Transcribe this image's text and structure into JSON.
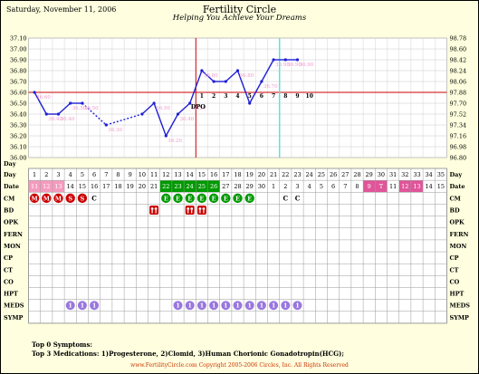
{
  "header": {
    "date": "Saturday, November 11, 2006",
    "title": "Fertility Circle",
    "subtitle": "Helping You Achieve Your Dreams"
  },
  "colors": {
    "line": "#1f1fd6",
    "cover_line": "#cc0000",
    "ovulation_line": "#cc0000",
    "today_line": "#66dddd",
    "menses_row": "#f49bbd",
    "period_date": "#e05599",
    "cm_green": "#009900",
    "menses_red": "#cc0000",
    "meds_purple": "#9977dd",
    "label_pink": "#ee99cc",
    "grid": "#a0a0a0"
  },
  "chart_data": {
    "type": "line",
    "title": "Fertility Circle",
    "subtitle": "Helping You Achieve Your Dreams",
    "y_left_ticks": [
      "36.00",
      "36.10",
      "36.20",
      "36.30",
      "36.40",
      "36.50",
      "36.60",
      "36.70",
      "36.80",
      "36.90",
      "37.00",
      "37.10"
    ],
    "y_right_ticks": [
      "96.80",
      "96.98",
      "97.16",
      "97.34",
      "97.52",
      "97.70",
      "97.88",
      "98.06",
      "98.24",
      "98.42",
      "98.60",
      "98.78"
    ],
    "ylim": [
      36.0,
      37.1
    ],
    "cycle_days": [
      1,
      2,
      3,
      4,
      5,
      6,
      7,
      8,
      9,
      10,
      11,
      12,
      13,
      14,
      15,
      16,
      17,
      18,
      19,
      20,
      21,
      22,
      23,
      24,
      25,
      26,
      27,
      28,
      29,
      30,
      31,
      32,
      33,
      34,
      35
    ],
    "weekdays": [
      "Sa",
      "Su",
      "Mo",
      "Tu",
      "We",
      "Th",
      "Fr",
      "Sa",
      "Su",
      "Mo",
      "Tu",
      "We",
      "Th",
      "Fr",
      "Sa",
      "Su",
      "Mo",
      "Tu",
      "We",
      "Th",
      "Fr",
      "Sa",
      "Su",
      "Mo",
      "Tu",
      "We",
      "Th",
      "Fr",
      "Sa",
      "Su",
      "Mo",
      "Tu",
      "We",
      "Th",
      "Fr"
    ],
    "dates": [
      "11",
      "12",
      "13",
      "14",
      "15",
      "16",
      "17",
      "18",
      "19",
      "20",
      "21",
      "22",
      "23",
      "24",
      "25",
      "26",
      "27",
      "28",
      "29",
      "30",
      "1",
      "2",
      "3",
      "4",
      "5",
      "6",
      "7",
      "8",
      "9",
      "T",
      "11",
      "12",
      "13",
      "14",
      "15"
    ],
    "date_highlight": {
      "menses_pink": [
        1,
        2,
        3
      ],
      "fertile_green": [
        12,
        13,
        14,
        15,
        16
      ],
      "period_pink": [
        29,
        30,
        32,
        33
      ]
    },
    "temperatures": [
      36.6,
      36.4,
      36.4,
      36.5,
      36.5,
      null,
      36.3,
      null,
      null,
      36.4,
      36.5,
      36.2,
      36.4,
      36.5,
      36.8,
      36.7,
      36.7,
      36.8,
      36.5,
      36.7,
      36.9,
      36.9,
      36.9,
      null,
      null,
      null,
      null,
      null,
      null,
      null,
      null,
      null,
      null,
      null,
      null
    ],
    "dashed_segments": [
      [
        5,
        7
      ],
      [
        7,
        10
      ]
    ],
    "temperature_labels": [
      {
        "day": 1,
        "text": "36.60"
      },
      {
        "day": 2,
        "text": "36.40"
      },
      {
        "day": 3,
        "text": "36.40"
      },
      {
        "day": 4,
        "text": "36.50"
      },
      {
        "day": 5,
        "text": "36.50"
      },
      {
        "day": 7,
        "text": "36.30"
      },
      {
        "day": 11,
        "text": "36.50"
      },
      {
        "day": 12,
        "text": "36.20"
      },
      {
        "day": 13,
        "text": "36.40"
      },
      {
        "day": 14,
        "text": "36.50"
      },
      {
        "day": 15,
        "text": "36.80"
      },
      {
        "day": 18,
        "text": "36.80"
      },
      {
        "day": 20,
        "text": "36.70"
      },
      {
        "day": 21,
        "text": "36.90"
      },
      {
        "day": 22,
        "text": "36.90"
      },
      {
        "day": 23,
        "text": "36.90"
      }
    ],
    "cover_line": 36.6,
    "ovulation_day": 14,
    "today_day": 21,
    "dpo_label": "DPO",
    "dpo_numbers": [
      {
        "day": 15,
        "text": "1"
      },
      {
        "day": 16,
        "text": "2"
      },
      {
        "day": 17,
        "text": "3"
      },
      {
        "day": 18,
        "text": "4"
      },
      {
        "day": 19,
        "text": "5"
      },
      {
        "day": 20,
        "text": "6"
      },
      {
        "day": 21,
        "text": "7"
      },
      {
        "day": 22,
        "text": "8"
      },
      {
        "day": 23,
        "text": "9"
      },
      {
        "day": 24,
        "text": "10"
      }
    ],
    "row_labels": [
      "Day",
      "Date",
      "CM",
      "BD",
      "OPK",
      "FERN",
      "MON",
      "CP",
      "CT",
      "CO",
      "HPT",
      "MEDS",
      "SYMP"
    ],
    "cm": [
      {
        "day": 1,
        "text": "M",
        "style": "red"
      },
      {
        "day": 2,
        "text": "M",
        "style": "red"
      },
      {
        "day": 3,
        "text": "M",
        "style": "red"
      },
      {
        "day": 4,
        "text": "S",
        "style": "red"
      },
      {
        "day": 5,
        "text": "S",
        "style": "red"
      },
      {
        "day": 6,
        "text": "C",
        "style": "plain"
      },
      {
        "day": 12,
        "text": "E",
        "style": "green"
      },
      {
        "day": 13,
        "text": "E",
        "style": "green"
      },
      {
        "day": 14,
        "text": "E",
        "style": "green"
      },
      {
        "day": 15,
        "text": "E",
        "style": "green"
      },
      {
        "day": 16,
        "text": "E",
        "style": "green"
      },
      {
        "day": 17,
        "text": "E",
        "style": "green"
      },
      {
        "day": 18,
        "text": "E",
        "style": "green"
      },
      {
        "day": 19,
        "text": "E",
        "style": "green"
      },
      {
        "day": 22,
        "text": "C",
        "style": "plain"
      },
      {
        "day": 23,
        "text": "C",
        "style": "plain"
      }
    ],
    "bd_days": [
      11,
      14,
      15
    ],
    "meds": [
      {
        "day": 4,
        "text": "1"
      },
      {
        "day": 5,
        "text": "1"
      },
      {
        "day": 6,
        "text": "1"
      },
      {
        "day": 13,
        "text": "1"
      },
      {
        "day": 14,
        "text": "1"
      },
      {
        "day": 15,
        "text": "1"
      },
      {
        "day": 16,
        "text": "1"
      },
      {
        "day": 17,
        "text": "1"
      },
      {
        "day": 18,
        "text": "1"
      },
      {
        "day": 19,
        "text": "1"
      },
      {
        "day": 20,
        "text": "1"
      },
      {
        "day": 21,
        "text": "1"
      },
      {
        "day": 22,
        "text": "1"
      },
      {
        "day": 23,
        "text": "1"
      }
    ]
  },
  "footer": {
    "symptoms": "Top 0 Symptoms:",
    "medications": "Top 3 Medications: 1)Progesterone, 2)Clomid, 3)Human Chorionic Gonadotropin(HCG);",
    "copyright": "www.FertilityCircle.com Copyright 2005-2006 Circles, Inc. All Rights Reserved"
  }
}
